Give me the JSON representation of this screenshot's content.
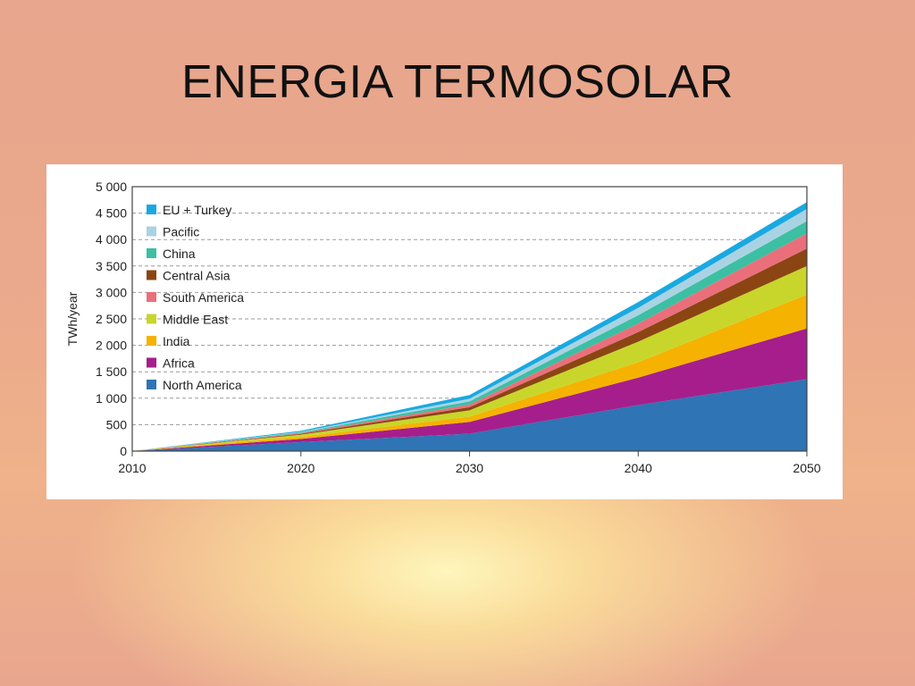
{
  "slide": {
    "title": "ENERGIA TERMOSOLAR"
  },
  "chart_data": {
    "type": "area",
    "stacked": true,
    "xlabel": "",
    "ylabel": "TWh/year",
    "x": [
      2010,
      2020,
      2030,
      2040,
      2050
    ],
    "ylim": [
      0,
      5000
    ],
    "y_ticks": [
      0,
      500,
      1000,
      1500,
      2000,
      2500,
      3000,
      3500,
      4000,
      4500,
      5000
    ],
    "y_tick_labels": [
      "0",
      "500",
      "1 000",
      "1 500",
      "2 000",
      "2 500",
      "3 000",
      "3 500",
      "4 000",
      "4 500",
      "5 000"
    ],
    "x_tick_labels": [
      "2010",
      "2020",
      "2030",
      "2040",
      "2050"
    ],
    "grid": "horizontal dashed",
    "legend_position": "top-left",
    "series": [
      {
        "name": "North America",
        "color": "#2f74b5",
        "values": [
          0,
          170,
          330,
          870,
          1360
        ]
      },
      {
        "name": "Africa",
        "color": "#a61e8c",
        "values": [
          0,
          60,
          220,
          520,
          960
        ]
      },
      {
        "name": "India",
        "color": "#f6b200",
        "values": [
          0,
          40,
          100,
          290,
          640
        ]
      },
      {
        "name": "Middle East",
        "color": "#c8d62c",
        "values": [
          0,
          40,
          120,
          390,
          540
        ]
      },
      {
        "name": "Central Asia",
        "color": "#8b4513",
        "values": [
          0,
          15,
          60,
          180,
          330
        ]
      },
      {
        "name": "South America",
        "color": "#ea6f7b",
        "values": [
          0,
          15,
          50,
          160,
          290
        ]
      },
      {
        "name": "China",
        "color": "#3cbfa3",
        "values": [
          0,
          15,
          60,
          160,
          230
        ]
      },
      {
        "name": "Pacific",
        "color": "#a9d3e3",
        "values": [
          0,
          10,
          50,
          140,
          230
        ]
      },
      {
        "name": "EU + Turkey",
        "color": "#19a9e1",
        "values": [
          0,
          20,
          70,
          110,
          130
        ]
      }
    ],
    "legend_order": [
      "EU + Turkey",
      "Pacific",
      "China",
      "Central Asia",
      "South America",
      "Middle East",
      "India",
      "Africa",
      "North America"
    ]
  }
}
